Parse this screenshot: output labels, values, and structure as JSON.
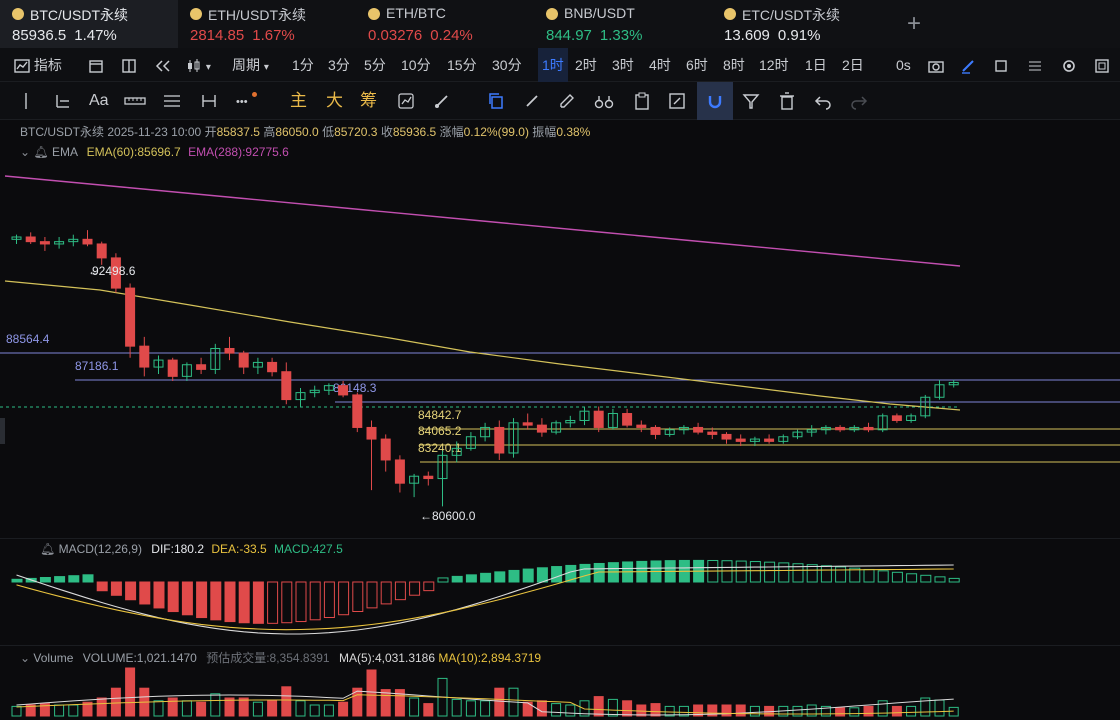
{
  "tickers": [
    {
      "name": "BTC/USDT永续",
      "price": "85936.5",
      "change": "1.47%",
      "color": "#e6e8ec",
      "active": true
    },
    {
      "name": "ETH/USDT永续",
      "price": "2814.85",
      "change": "1.67%",
      "color": "#e04a4a",
      "active": false
    },
    {
      "name": "ETH/BTC",
      "price": "0.03276",
      "change": "0.24%",
      "color": "#e04a4a",
      "active": false
    },
    {
      "name": "BNB/USDT",
      "price": "844.97",
      "change": "1.33%",
      "color": "#2ebd85",
      "active": false
    },
    {
      "name": "ETC/USDT永续",
      "price": "13.609",
      "change": "0.91%",
      "color": "#e6e8ec",
      "active": false
    }
  ],
  "add_tab": "+",
  "toolbar1": {
    "indicators_label": "指标",
    "period_label": "周期",
    "intervals": [
      "1分",
      "3分",
      "5分",
      "10分",
      "15分",
      "30分",
      "1时",
      "2时",
      "3时",
      "4时",
      "6时",
      "8时",
      "12时",
      "1日",
      "2日"
    ],
    "active_interval": "1时",
    "timer": "0s"
  },
  "toolbar2": {
    "text_tool": "Aa",
    "more": "•••",
    "zhu": "主",
    "da": "大",
    "chou": "筹"
  },
  "info": {
    "symbol": "BTC/USDT永续",
    "datetime": "2025-11-23 10:00",
    "open_label": "开",
    "open": "85837.5",
    "high_label": "高",
    "high": "86050.0",
    "low_label": "低",
    "low": "85720.3",
    "close_label": "收",
    "close": "85936.5",
    "change_label": "涨幅",
    "change": "0.12%(99.0)",
    "amp_label": "振幅",
    "amp": "0.38%"
  },
  "ema": {
    "label": "EMA",
    "ema60": "EMA(60):85696.7",
    "ema288": "EMA(288):92775.6"
  },
  "price_labels": {
    "high_mark": "92498.6",
    "low_mark": "80600.0",
    "left_level": "88564.4",
    "level2": "87186.1",
    "level3": "86148.3",
    "level4": "84842.7",
    "level5": "84065.2",
    "level6": "83240.1"
  },
  "macd": {
    "label": "MACD(12,26,9)",
    "dif": "DIF:180.2",
    "dea": "DEA:-33.5",
    "macd": "MACD:427.5"
  },
  "volume": {
    "label": "Volume",
    "volume": "VOLUME:1,021.1470",
    "est_label": "预估成交量:8,354.8391",
    "ma5": "MA(5):4,031.3186",
    "ma10": "MA(10):2,894.3719"
  },
  "colors": {
    "up": "#2ebd85",
    "down": "#e04a4a",
    "ema60": "#d4c25a",
    "ema288": "#c24fb0",
    "accent": "#3d7bff"
  },
  "chart_data": {
    "type": "candlestick",
    "candles": [
      [
        92100,
        92300,
        91900,
        92200
      ],
      [
        92200,
        92400,
        91900,
        92000
      ],
      [
        92000,
        92200,
        91600,
        91900
      ],
      [
        91900,
        92200,
        91700,
        92000
      ],
      [
        92000,
        92300,
        91800,
        92100
      ],
      [
        92100,
        92498.6,
        91800,
        91900
      ],
      [
        91900,
        92000,
        91000,
        91300
      ],
      [
        91300,
        91500,
        89800,
        90000
      ],
      [
        90000,
        90200,
        87000,
        87500
      ],
      [
        87500,
        87900,
        86200,
        86600
      ],
      [
        86600,
        87100,
        86300,
        86900
      ],
      [
        86900,
        87000,
        86000,
        86200
      ],
      [
        86200,
        86800,
        86000,
        86700
      ],
      [
        86700,
        87000,
        86300,
        86500
      ],
      [
        86500,
        87600,
        86300,
        87400
      ],
      [
        87400,
        87900,
        86900,
        87200
      ],
      [
        87200,
        87300,
        86300,
        86600
      ],
      [
        86600,
        87000,
        86300,
        86800
      ],
      [
        86800,
        87000,
        86200,
        86400
      ],
      [
        86400,
        86800,
        85000,
        85200
      ],
      [
        85200,
        85700,
        84900,
        85500
      ],
      [
        85500,
        85800,
        85300,
        85600
      ],
      [
        85600,
        85900,
        85400,
        85800
      ],
      [
        85800,
        86000,
        85300,
        85400
      ],
      [
        85400,
        85500,
        83800,
        84000
      ],
      [
        84000,
        84300,
        81300,
        83500
      ],
      [
        83500,
        83700,
        82100,
        82600
      ],
      [
        82600,
        82800,
        81200,
        81600
      ],
      [
        81600,
        82000,
        81000,
        81900
      ],
      [
        81900,
        82100,
        81500,
        81800
      ],
      [
        81800,
        83000,
        80600,
        82800
      ],
      [
        82800,
        83400,
        82500,
        83100
      ],
      [
        83100,
        83800,
        83000,
        83600
      ],
      [
        83600,
        84200,
        83400,
        84000
      ],
      [
        84000,
        84300,
        82600,
        82900
      ],
      [
        82900,
        84400,
        82700,
        84200
      ],
      [
        84200,
        84600,
        83900,
        84100
      ],
      [
        84100,
        84400,
        83600,
        83800
      ],
      [
        83800,
        84300,
        83700,
        84200
      ],
      [
        84200,
        84500,
        84000,
        84300
      ],
      [
        84300,
        84900,
        84100,
        84700
      ],
      [
        84700,
        84900,
        83800,
        84000
      ],
      [
        84000,
        84800,
        83900,
        84600
      ],
      [
        84600,
        84800,
        84000,
        84100
      ],
      [
        84100,
        84300,
        83800,
        84000
      ],
      [
        84000,
        84100,
        83500,
        83700
      ],
      [
        83700,
        84000,
        83600,
        83900
      ],
      [
        83900,
        84100,
        83700,
        84000
      ],
      [
        84000,
        84200,
        83700,
        83800
      ],
      [
        83800,
        84000,
        83500,
        83700
      ],
      [
        83700,
        83800,
        83300,
        83500
      ],
      [
        83500,
        83700,
        83200,
        83400
      ],
      [
        83400,
        83600,
        83200,
        83500
      ],
      [
        83500,
        83700,
        83300,
        83400
      ],
      [
        83400,
        83700,
        83300,
        83600
      ],
      [
        83600,
        83900,
        83500,
        83800
      ],
      [
        83800,
        84100,
        83600,
        83900
      ],
      [
        83900,
        84100,
        83700,
        84000
      ],
      [
        84000,
        84100,
        83800,
        83900
      ],
      [
        83900,
        84100,
        83800,
        84000
      ],
      [
        84000,
        84200,
        83800,
        83900
      ],
      [
        83900,
        84600,
        83800,
        84500
      ],
      [
        84500,
        84600,
        84200,
        84300
      ],
      [
        84300,
        84600,
        84200,
        84500
      ],
      [
        84500,
        85400,
        84400,
        85300
      ],
      [
        85300,
        86050,
        85200,
        85837.5
      ],
      [
        85837.5,
        86050,
        85720.3,
        85936.5
      ]
    ],
    "ema60": [
      92300,
      92000,
      91500,
      90800,
      90000,
      89200,
      88400,
      87600,
      86900,
      86300,
      85900,
      85697
    ],
    "ema288": [
      94700,
      94500,
      94300,
      94000,
      93800,
      93500,
      93300,
      93000,
      92775.6
    ],
    "levels": [
      88564.4,
      87186.1,
      86148.3,
      84842.7,
      84065.2,
      83240.1
    ],
    "y_range": [
      79800,
      95300
    ]
  }
}
